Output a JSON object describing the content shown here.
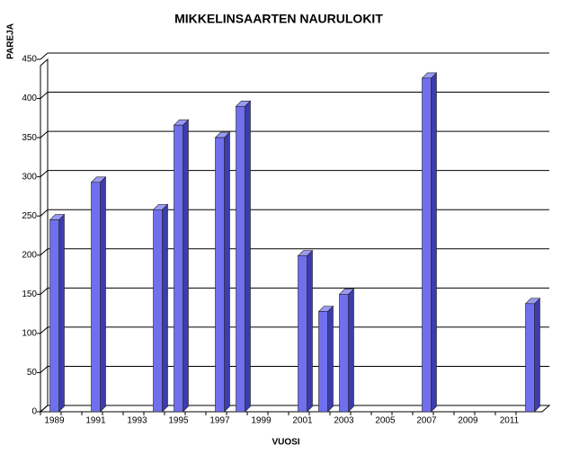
{
  "chart_data": {
    "type": "bar3d",
    "title": "MIKKELINSAARTEN NAURULOKIT",
    "y_label": "PAREJA",
    "x_label": "VUOSI",
    "categories": [
      "1989",
      null,
      "1991",
      null,
      "1993",
      null,
      "1995",
      null,
      "1997",
      null,
      "1999",
      null,
      "2001",
      null,
      "2003",
      null,
      "2005",
      null,
      "2007",
      null,
      "2009",
      null,
      "2011",
      null
    ],
    "values": [
      245,
      null,
      293,
      null,
      null,
      258,
      366,
      null,
      350,
      390,
      null,
      null,
      199,
      128,
      150,
      null,
      null,
      null,
      426,
      null,
      null,
      null,
      null,
      138
    ],
    "color": "#7070ee",
    "ylim": [
      0,
      450
    ],
    "yticks": [
      0,
      50,
      100,
      150,
      200,
      250,
      300,
      350,
      400,
      450
    ],
    "grid": true
  }
}
